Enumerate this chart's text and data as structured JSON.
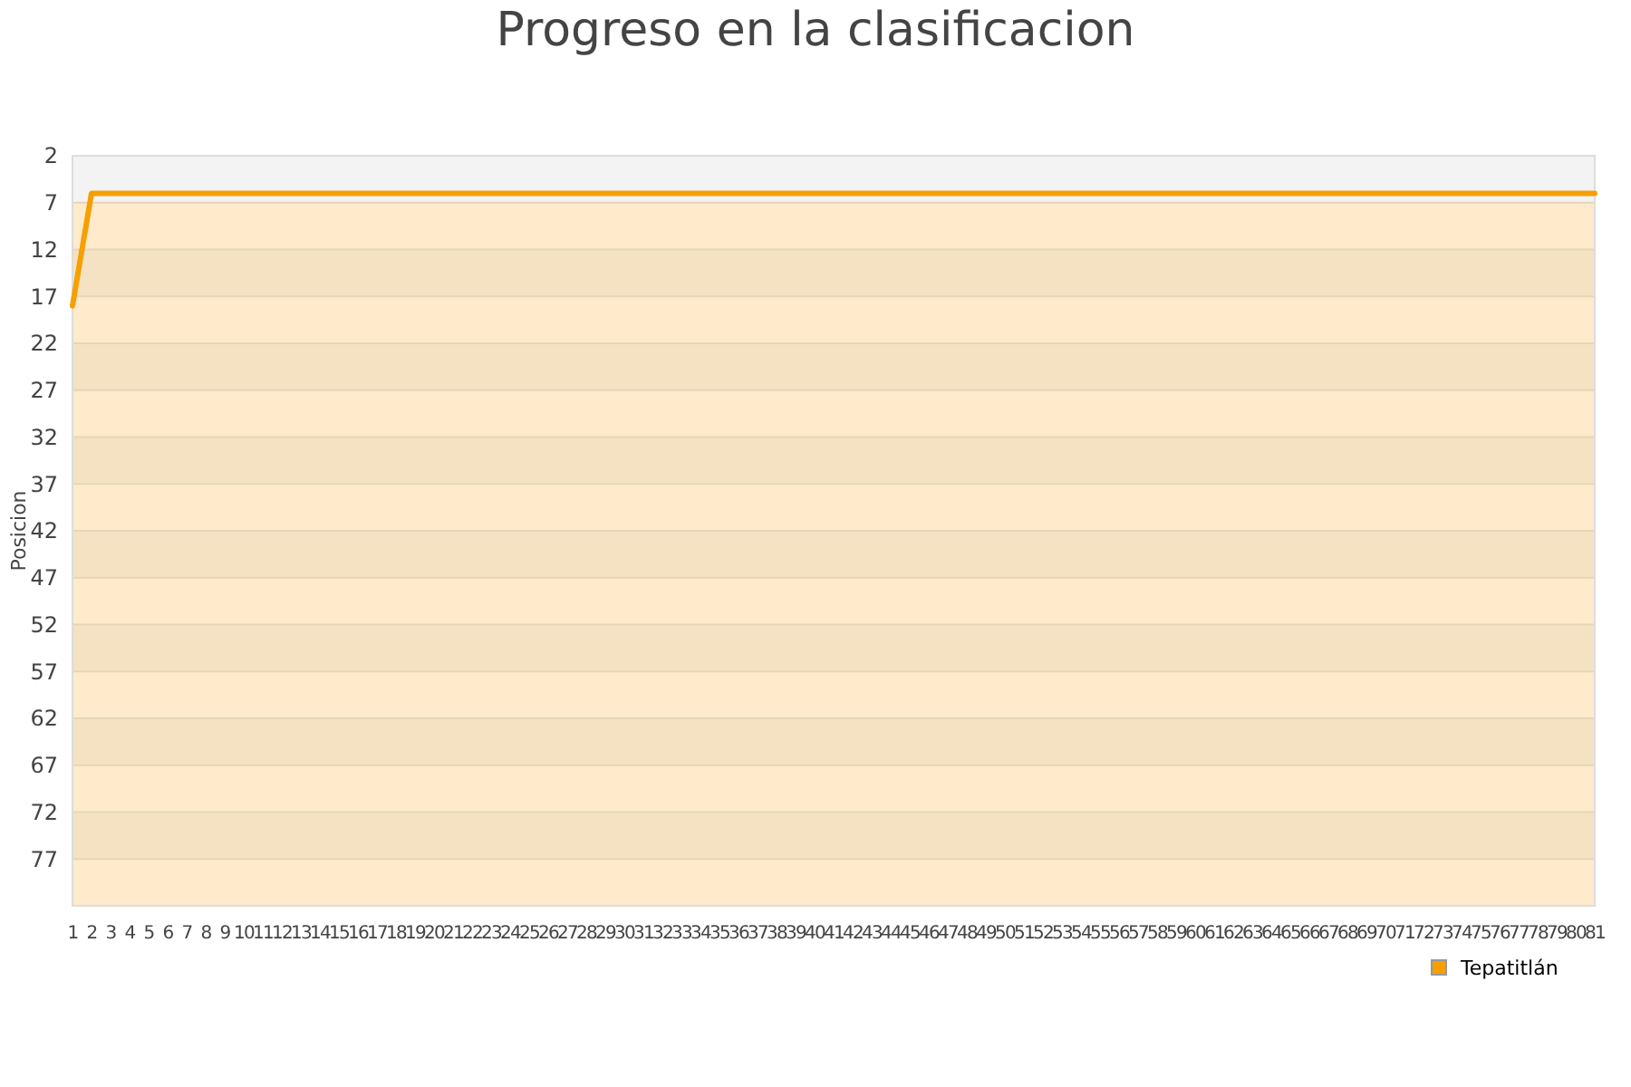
{
  "chart_data": {
    "type": "line",
    "title": "Progreso en la clasificacion",
    "ylabel": "Posicion",
    "x": [
      1,
      2,
      3,
      4,
      5,
      6,
      7,
      8,
      9,
      10,
      11,
      12,
      13,
      14,
      15,
      16,
      17,
      18,
      19,
      20,
      21,
      22,
      23,
      24,
      25,
      26,
      27,
      28,
      29,
      30,
      31,
      32,
      33,
      34,
      35,
      36,
      37,
      38,
      39,
      40,
      41,
      42,
      43,
      44,
      45,
      46,
      47,
      48,
      49,
      50,
      51,
      52,
      53,
      54,
      55,
      56,
      57,
      58,
      59,
      60,
      61,
      62,
      63,
      64,
      65,
      66,
      67,
      68,
      69,
      70,
      71,
      72,
      73,
      74,
      75,
      76,
      77,
      78,
      79,
      80,
      81
    ],
    "series": [
      {
        "name": "Tepatitlán",
        "color": "#f5a000",
        "values": [
          18,
          6,
          6,
          6,
          6,
          6,
          6,
          6,
          6,
          6,
          6,
          6,
          6,
          6,
          6,
          6,
          6,
          6,
          6,
          6,
          6,
          6,
          6,
          6,
          6,
          6,
          6,
          6,
          6,
          6,
          6,
          6,
          6,
          6,
          6,
          6,
          6,
          6,
          6,
          6,
          6,
          6,
          6,
          6,
          6,
          6,
          6,
          6,
          6,
          6,
          6,
          6,
          6,
          6,
          6,
          6,
          6,
          6,
          6,
          6,
          6,
          6,
          6,
          6,
          6,
          6,
          6,
          6,
          6,
          6,
          6,
          6,
          6,
          6,
          6,
          6,
          6,
          6,
          6,
          6,
          6
        ]
      }
    ],
    "xlim": [
      1,
      81
    ],
    "xticks": [
      1,
      2,
      3,
      4,
      5,
      6,
      7,
      8,
      9,
      10,
      11,
      12,
      13,
      14,
      15,
      16,
      17,
      18,
      19,
      20,
      21,
      22,
      23,
      24,
      25,
      26,
      27,
      28,
      29,
      30,
      31,
      32,
      33,
      34,
      35,
      36,
      37,
      38,
      39,
      40,
      41,
      42,
      43,
      44,
      45,
      46,
      47,
      48,
      49,
      50,
      51,
      52,
      53,
      54,
      55,
      56,
      57,
      58,
      59,
      60,
      61,
      62,
      63,
      64,
      65,
      66,
      67,
      68,
      69,
      70,
      71,
      72,
      73,
      74,
      75,
      76,
      77,
      78,
      79,
      80,
      81
    ],
    "ylim": [
      82,
      2
    ],
    "yticks": [
      2,
      7,
      12,
      17,
      22,
      27,
      32,
      37,
      42,
      47,
      52,
      57,
      62,
      67,
      72,
      77
    ],
    "bands": [
      {
        "axis": "y",
        "from": 2,
        "to": 7,
        "color": "#f3f3f3"
      },
      {
        "axis": "y",
        "from": 7,
        "to": 12,
        "color": "#ffebcb"
      },
      {
        "axis": "y",
        "from": 12,
        "to": 17,
        "color": "#f5e2c3"
      },
      {
        "axis": "y",
        "from": 17,
        "to": 22,
        "color": "#ffebcb"
      },
      {
        "axis": "y",
        "from": 22,
        "to": 27,
        "color": "#f5e2c3"
      },
      {
        "axis": "y",
        "from": 27,
        "to": 32,
        "color": "#ffebcb"
      },
      {
        "axis": "y",
        "from": 32,
        "to": 37,
        "color": "#f5e2c3"
      },
      {
        "axis": "y",
        "from": 37,
        "to": 42,
        "color": "#ffebcb"
      },
      {
        "axis": "y",
        "from": 42,
        "to": 47,
        "color": "#f5e2c3"
      },
      {
        "axis": "y",
        "from": 47,
        "to": 52,
        "color": "#ffebcb"
      },
      {
        "axis": "y",
        "from": 52,
        "to": 57,
        "color": "#f5e2c3"
      },
      {
        "axis": "y",
        "from": 57,
        "to": 62,
        "color": "#ffebcb"
      },
      {
        "axis": "y",
        "from": 62,
        "to": 67,
        "color": "#f5e2c3"
      },
      {
        "axis": "y",
        "from": 67,
        "to": 72,
        "color": "#ffebcb"
      },
      {
        "axis": "y",
        "from": 72,
        "to": 77,
        "color": "#f5e2c3"
      },
      {
        "axis": "y",
        "from": 77,
        "to": 82,
        "color": "#ffebcb"
      }
    ],
    "grid": "y",
    "legend": "bottom right",
    "marker": "none",
    "line_style": "solid"
  }
}
